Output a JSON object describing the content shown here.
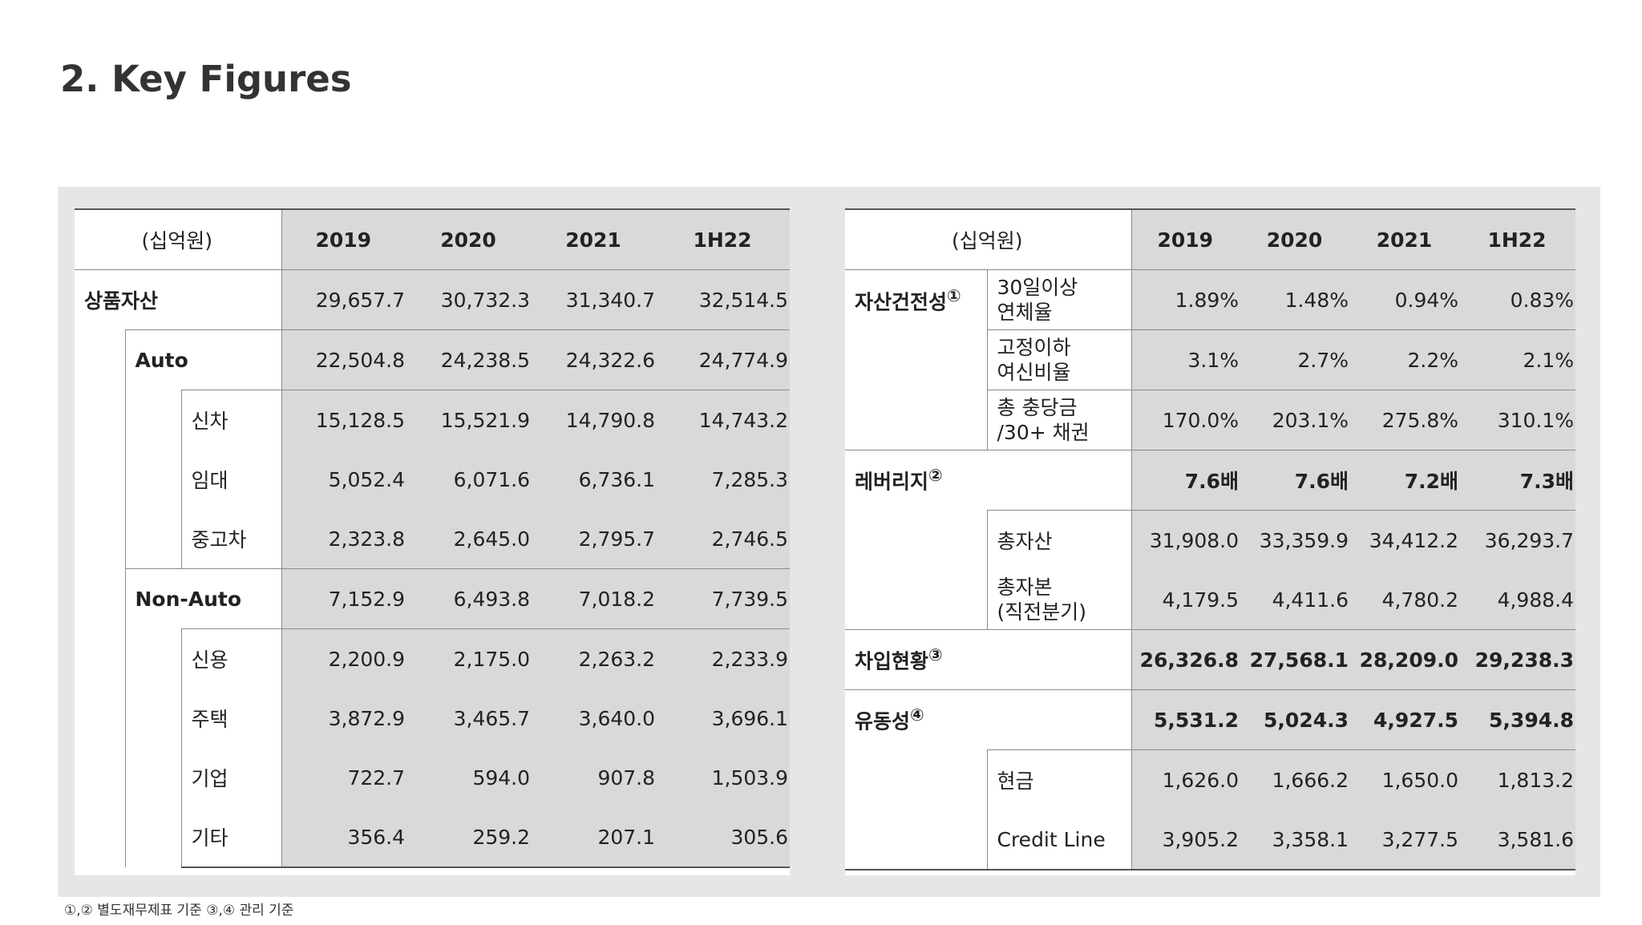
{
  "page": {
    "title": "2. Key Figures"
  },
  "left_table": {
    "unit": "(십억원)",
    "years": [
      "2019",
      "2020",
      "2021",
      "1H22"
    ],
    "rows": [
      {
        "label": "상품자산",
        "values": [
          "29,657.7",
          "30,732.3",
          "31,340.7",
          "32,514.5"
        ]
      },
      {
        "label": "Auto",
        "values": [
          "22,504.8",
          "24,238.5",
          "24,322.6",
          "24,774.9"
        ]
      },
      {
        "label": "신차",
        "values": [
          "15,128.5",
          "15,521.9",
          "14,790.8",
          "14,743.2"
        ]
      },
      {
        "label": "임대",
        "values": [
          "5,052.4",
          "6,071.6",
          "6,736.1",
          "7,285.3"
        ]
      },
      {
        "label": "중고차",
        "values": [
          "2,323.8",
          "2,645.0",
          "2,795.7",
          "2,746.5"
        ]
      },
      {
        "label": "Non-Auto",
        "values": [
          "7,152.9",
          "6,493.8",
          "7,018.2",
          "7,739.5"
        ]
      },
      {
        "label": "신용",
        "values": [
          "2,200.9",
          "2,175.0",
          "2,263.2",
          "2,233.9"
        ]
      },
      {
        "label": "주택",
        "values": [
          "3,872.9",
          "3,465.7",
          "3,640.0",
          "3,696.1"
        ]
      },
      {
        "label": "기업",
        "values": [
          "722.7",
          "594.0",
          "907.8",
          "1,503.9"
        ]
      },
      {
        "label": "기타",
        "values": [
          "356.4",
          "259.2",
          "207.1",
          "305.6"
        ]
      }
    ]
  },
  "right_table": {
    "unit": "(십억원)",
    "years": [
      "2019",
      "2020",
      "2021",
      "1H22"
    ],
    "asset_quality": {
      "label": "자산건전성",
      "note": "①",
      "rows": [
        {
          "label_line1": "30일이상",
          "label_line2": "연체율",
          "values": [
            "1.89%",
            "1.48%",
            "0.94%",
            "0.83%"
          ]
        },
        {
          "label_line1": "고정이하",
          "label_line2": "여신비율",
          "values": [
            "3.1%",
            "2.7%",
            "2.2%",
            "2.1%"
          ]
        },
        {
          "label_line1": "총 충당금",
          "label_line2": "/30+ 채권",
          "values": [
            "170.0%",
            "203.1%",
            "275.8%",
            "310.1%"
          ]
        }
      ]
    },
    "leverage": {
      "label": "레버리지",
      "note": "②",
      "values": [
        "7.6배",
        "7.6배",
        "7.2배",
        "7.3배"
      ],
      "rows": [
        {
          "label_line1": "총자산",
          "label_line2": "",
          "values": [
            "31,908.0",
            "33,359.9",
            "34,412.2",
            "36,293.7"
          ]
        },
        {
          "label_line1": "총자본",
          "label_line2": "(직전분기)",
          "values": [
            "4,179.5",
            "4,411.6",
            "4,780.2",
            "4,988.4"
          ]
        }
      ]
    },
    "borrowings": {
      "label": "차입현황",
      "note": "③",
      "values": [
        "26,326.8",
        "27,568.1",
        "28,209.0",
        "29,238.3"
      ]
    },
    "liquidity": {
      "label": "유동성",
      "note": "④",
      "values": [
        "5,531.2",
        "5,024.3",
        "4,927.5",
        "5,394.8"
      ],
      "rows": [
        {
          "label": "현금",
          "values": [
            "1,626.0",
            "1,666.2",
            "1,650.0",
            "1,813.2"
          ]
        },
        {
          "label": "Credit Line",
          "values": [
            "3,905.2",
            "3,358.1",
            "3,277.5",
            "3,581.6"
          ]
        }
      ]
    }
  },
  "footnote": "①,② 별도재무제표 기준 ③,④ 관리 기준",
  "colors": {
    "shade": "#d9d9d9",
    "panel": "#e6e6e6",
    "title": "#333333"
  }
}
